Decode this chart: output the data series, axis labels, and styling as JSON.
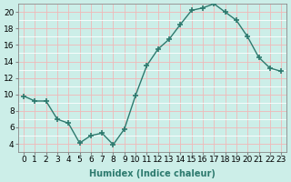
{
  "x": [
    0,
    1,
    2,
    3,
    4,
    5,
    6,
    7,
    8,
    9,
    10,
    11,
    12,
    13,
    14,
    15,
    16,
    17,
    18,
    19,
    20,
    21,
    22,
    23
  ],
  "y": [
    9.8,
    9.2,
    9.2,
    7.0,
    6.5,
    4.1,
    5.0,
    5.3,
    3.9,
    5.8,
    9.9,
    13.5,
    15.5,
    16.7,
    18.5,
    20.2,
    20.5,
    21.0,
    20.0,
    19.0,
    17.0,
    14.5,
    13.2,
    12.8
  ],
  "line_color": "#2d7a6e",
  "marker": "+",
  "marker_size": 5,
  "bg_color": "#cceee8",
  "grid_major_color": "#f0b8b8",
  "grid_minor_color": "#ffffff",
  "xlabel": "Humidex (Indice chaleur)",
  "ylim": [
    3,
    21
  ],
  "xlim": [
    -0.5,
    23.5
  ],
  "yticks": [
    4,
    6,
    8,
    10,
    12,
    14,
    16,
    18,
    20
  ],
  "xticks": [
    0,
    1,
    2,
    3,
    4,
    5,
    6,
    7,
    8,
    9,
    10,
    11,
    12,
    13,
    14,
    15,
    16,
    17,
    18,
    19,
    20,
    21,
    22,
    23
  ],
  "xlabel_fontsize": 7,
  "tick_fontsize": 6.5
}
